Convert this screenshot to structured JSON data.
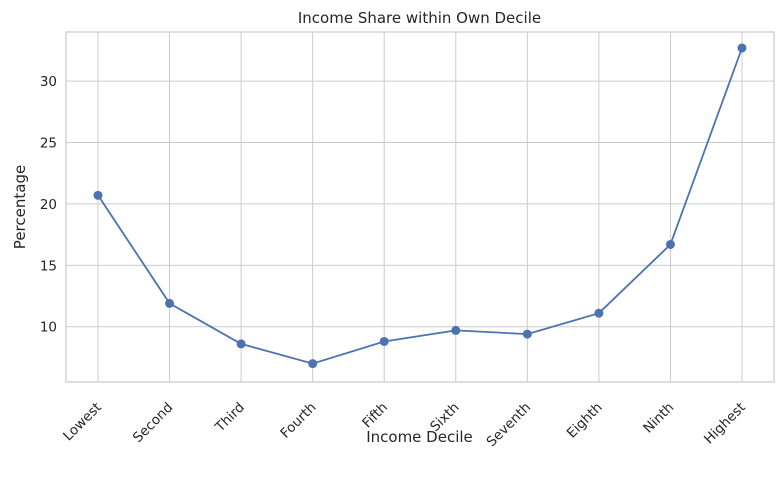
{
  "chart_data": {
    "type": "line",
    "title": "Income Share within Own Decile",
    "xlabel": "Income Decile",
    "ylabel": "Percentage",
    "categories": [
      "Lowest",
      "Second",
      "Third",
      "Fourth",
      "Fifth",
      "Sixth",
      "Seventh",
      "Eighth",
      "Ninth",
      "Highest"
    ],
    "series": [
      {
        "values": [
          20.7,
          11.9,
          8.6,
          7.0,
          8.8,
          9.7,
          9.4,
          11.1,
          16.7,
          32.7
        ]
      }
    ],
    "ylim": [
      5.5,
      34.0
    ],
    "yticks": [
      10,
      15,
      20,
      25,
      30
    ],
    "grid": true,
    "marker": "circle",
    "color": "#4c72b0"
  }
}
